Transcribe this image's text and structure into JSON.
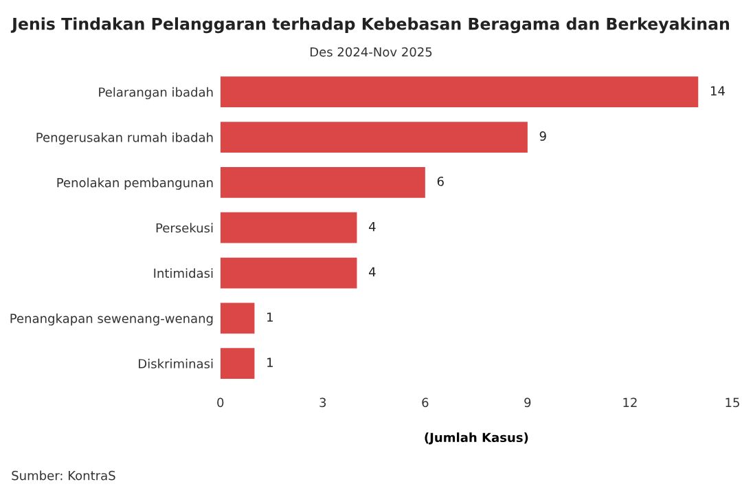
{
  "chart_data": {
    "type": "bar",
    "orientation": "horizontal",
    "title": "Jenis Tindakan Pelanggaran terhadap Kebebasan Beragama dan Berkeyakinan",
    "subtitle": "Des 2024-Nov 2025",
    "xlabel": "(Jumlah Kasus)",
    "categories": [
      "Pelarangan ibadah",
      "Pengerusakan rumah ibadah",
      "Penolakan pembangunan",
      "Persekusi",
      "Intimidasi",
      "Penangkapan sewenang-wenang",
      "Diskriminasi"
    ],
    "values": [
      14,
      9,
      6,
      4,
      4,
      1,
      1
    ],
    "color": "#db4646",
    "xlim": [
      0,
      15
    ],
    "xticks": [
      0,
      3,
      6,
      9,
      12,
      15
    ],
    "grid": false,
    "data_labels": true,
    "annotations": [
      "Sumber: KontraS"
    ]
  }
}
